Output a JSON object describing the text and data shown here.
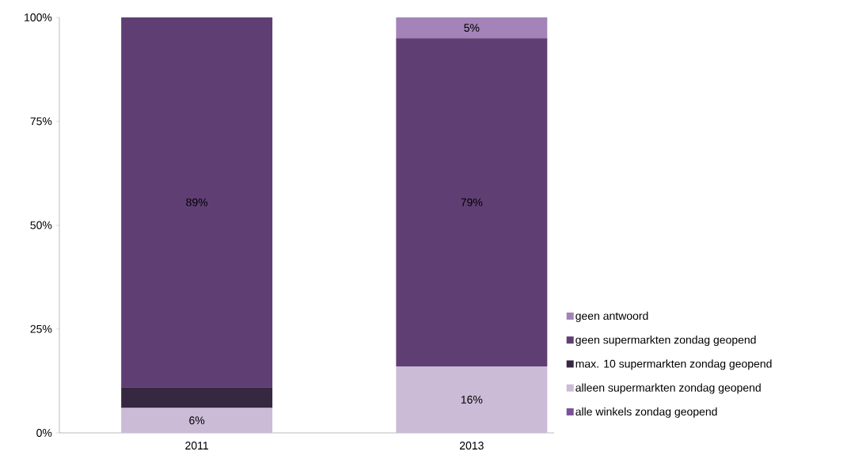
{
  "chart_data": {
    "type": "bar",
    "stacked": true,
    "categories": [
      "2011",
      "2013"
    ],
    "series": [
      {
        "name": "alle winkels zondag geopend",
        "color": "#7b5199",
        "values": [
          0,
          0
        ]
      },
      {
        "name": "alleen supermarkten zondag geopend",
        "color": "#cbbbd6",
        "values": [
          6,
          16
        ],
        "value_labels": [
          "6%",
          "16%"
        ]
      },
      {
        "name": "max. 10 supermarkten zondag geopend",
        "color": "#372841",
        "values": [
          5,
          0
        ]
      },
      {
        "name": "geen supermarkten zondag geopend",
        "color": "#5f3f73",
        "values": [
          89,
          79
        ],
        "value_labels": [
          "89%",
          "79%"
        ]
      },
      {
        "name": "geen antwoord",
        "color": "#a383b8",
        "values": [
          0,
          5
        ],
        "value_labels": [
          null,
          "5%"
        ]
      }
    ],
    "ylim": [
      0,
      100
    ],
    "yticks": [
      {
        "value": 0,
        "label": "0%"
      },
      {
        "value": 25,
        "label": "25%"
      },
      {
        "value": 50,
        "label": "50%"
      },
      {
        "value": 75,
        "label": "75%"
      },
      {
        "value": 100,
        "label": "100%"
      }
    ],
    "grid": false,
    "legend": "right"
  }
}
